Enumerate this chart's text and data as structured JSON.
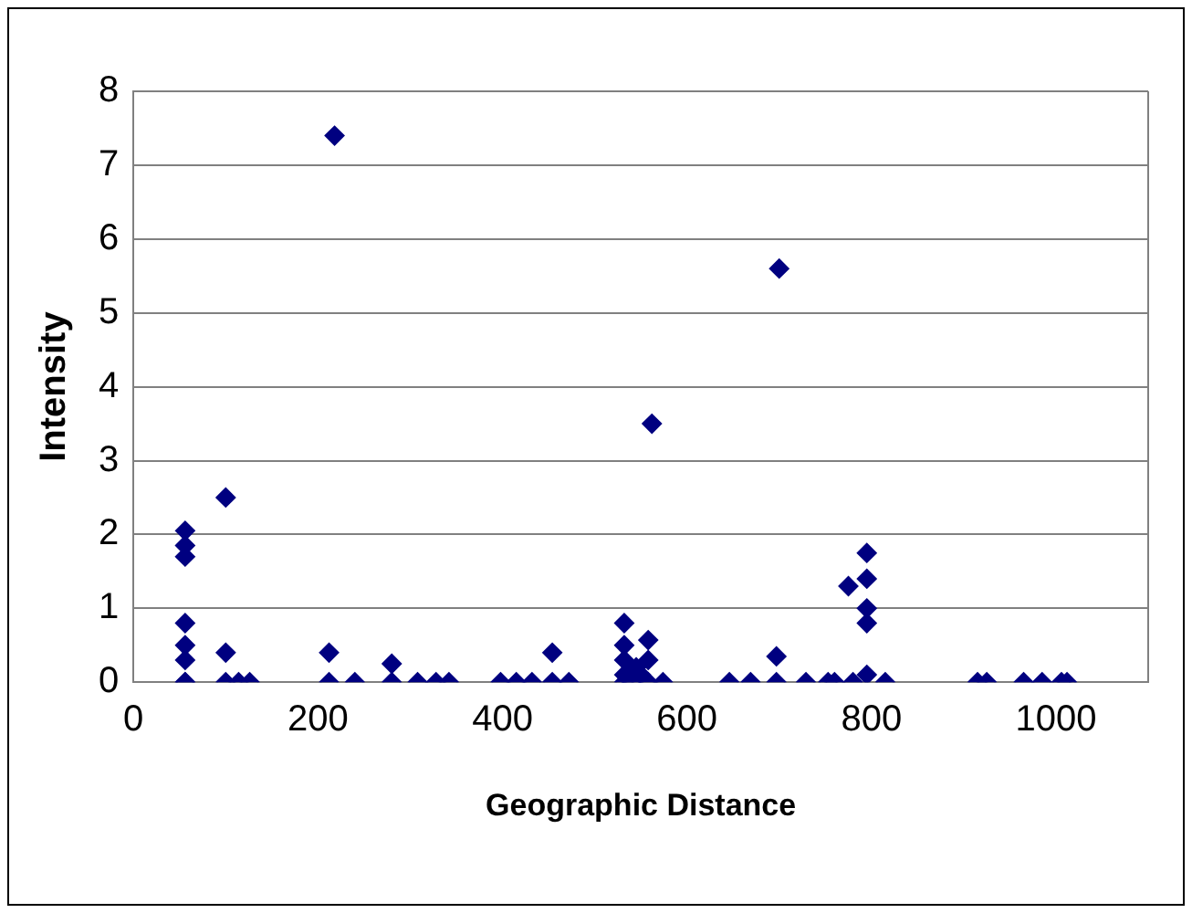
{
  "chart_data": {
    "type": "scatter",
    "xlabel": "Geographic Distance",
    "ylabel": "Intensity",
    "xlim": [
      0,
      1100
    ],
    "xticks": [
      0,
      200,
      400,
      600,
      800,
      1000
    ],
    "ylim": [
      0,
      8
    ],
    "yticks": [
      0,
      1,
      2,
      3,
      4,
      5,
      6,
      7,
      8
    ],
    "grid": "y",
    "legend": false,
    "marker": "diamond",
    "series": [
      {
        "color": "#000080",
        "x": [
          56,
          56,
          56,
          56,
          56,
          56,
          56,
          56,
          100,
          100,
          100,
          114,
          126,
          212,
          212,
          218,
          240,
          280,
          280,
          308,
          328,
          342,
          398,
          415,
          432,
          454,
          454,
          472,
          532,
          532,
          532,
          532,
          532,
          540,
          545,
          550,
          558,
          558,
          558,
          562,
          574,
          646,
          669,
          697,
          697,
          700,
          729,
          753,
          760,
          775,
          780,
          795,
          795,
          795,
          795,
          795,
          815,
          915,
          925,
          965,
          985,
          1006,
          1012
        ],
        "values": [
          2.05,
          1.85,
          1.7,
          0.8,
          0.5,
          0.3,
          0,
          0,
          2.5,
          0.4,
          0,
          0,
          0,
          0.4,
          0,
          7.4,
          0,
          0.25,
          0,
          0,
          0,
          0,
          0,
          0,
          0,
          0.4,
          0,
          0,
          0.8,
          0.5,
          0.3,
          0.1,
          0,
          0,
          0.2,
          0.1,
          0.57,
          0.3,
          0,
          3.5,
          0,
          0,
          0,
          0.35,
          0,
          5.6,
          0,
          0,
          0,
          1.3,
          0,
          1.75,
          1.4,
          1.0,
          0.8,
          0.1,
          0,
          0,
          0,
          0,
          0,
          0,
          0
        ]
      }
    ]
  }
}
